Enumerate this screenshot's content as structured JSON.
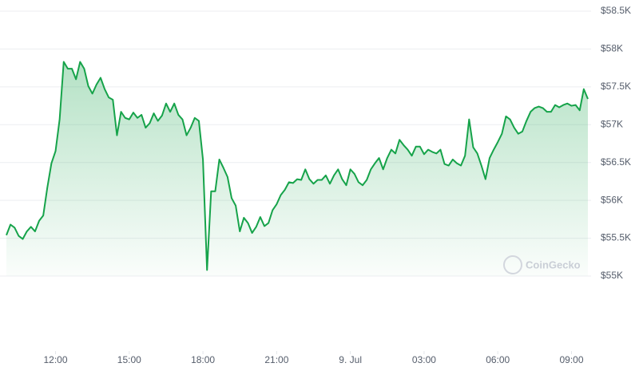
{
  "chart_data": {
    "type": "line",
    "watermark": "CoinGecko",
    "x": [
      600,
      610,
      620,
      630,
      640,
      650,
      660,
      670,
      680,
      690,
      700,
      710,
      720,
      730,
      740,
      750,
      760,
      770,
      780,
      790,
      800,
      810,
      820,
      830,
      840,
      850,
      860,
      870,
      880,
      890,
      900,
      910,
      920,
      930,
      940,
      950,
      960,
      970,
      980,
      990,
      1000,
      1010,
      1020,
      1030,
      1040,
      1050,
      1060,
      1070,
      1080,
      1090,
      1100,
      1110,
      1120,
      1130,
      1140,
      1150,
      1160,
      1170,
      1180,
      1190,
      1200,
      1210,
      1220,
      1230,
      1240,
      1250,
      1260,
      1270,
      1280,
      1290,
      1300,
      1310,
      1320,
      1330,
      1340,
      1350,
      1360,
      1370,
      1380,
      1390,
      1400,
      1410,
      1420,
      1430,
      1440,
      1450,
      1460,
      1470,
      1480,
      1490,
      1500,
      1510,
      1520,
      1530,
      1540,
      1550,
      1560,
      1570,
      1580,
      1590,
      1600,
      1610,
      1620,
      1630,
      1640,
      1650,
      1660,
      1670,
      1680,
      1690,
      1700,
      1710,
      1720,
      1730,
      1740,
      1750,
      1760,
      1770,
      1780,
      1790,
      1800,
      1810,
      1820,
      1830,
      1840,
      1850,
      1860,
      1870,
      1880,
      1890,
      1900,
      1910,
      1920,
      1930,
      1940,
      1950,
      1960,
      1970,
      1980,
      1990,
      2000,
      2010,
      2020
    ],
    "series": [
      {
        "color": "#16a34a",
        "values": [
          55540,
          55680,
          55640,
          55530,
          55490,
          55590,
          55650,
          55590,
          55730,
          55800,
          56170,
          56490,
          56650,
          57070,
          57830,
          57740,
          57740,
          57600,
          57830,
          57740,
          57510,
          57410,
          57530,
          57620,
          57470,
          57360,
          57330,
          56860,
          57170,
          57090,
          57070,
          57160,
          57090,
          57130,
          56960,
          57020,
          57150,
          57050,
          57120,
          57280,
          57170,
          57280,
          57130,
          57070,
          56860,
          56960,
          57090,
          57050,
          56540,
          55080,
          56120,
          56120,
          56540,
          56430,
          56310,
          56030,
          55930,
          55590,
          55770,
          55700,
          55570,
          55650,
          55780,
          55660,
          55700,
          55870,
          55950,
          56070,
          56140,
          56240,
          56230,
          56280,
          56270,
          56410,
          56280,
          56220,
          56270,
          56270,
          56330,
          56220,
          56330,
          56410,
          56280,
          56200,
          56410,
          56350,
          56240,
          56200,
          56270,
          56410,
          56490,
          56560,
          56410,
          56560,
          56670,
          56620,
          56800,
          56730,
          56670,
          56590,
          56710,
          56710,
          56610,
          56670,
          56640,
          56620,
          56670,
          56480,
          56460,
          56540,
          56490,
          56460,
          56590,
          57070,
          56700,
          56620,
          56460,
          56280,
          56560,
          56670,
          56770,
          56880,
          57110,
          57070,
          56960,
          56880,
          56910,
          57050,
          57170,
          57220,
          57240,
          57220,
          57170,
          57170,
          57260,
          57230,
          57260,
          57280,
          57250,
          57260,
          57190,
          57470,
          57340
        ]
      }
    ],
    "xlim": [
      600,
      2020
    ],
    "xticks": [
      {
        "value": 720,
        "label": "12:00"
      },
      {
        "value": 900,
        "label": "15:00"
      },
      {
        "value": 1080,
        "label": "18:00"
      },
      {
        "value": 1260,
        "label": "21:00"
      },
      {
        "value": 1440,
        "label": "9. Jul"
      },
      {
        "value": 1620,
        "label": "03:00"
      },
      {
        "value": 1800,
        "label": "06:00"
      },
      {
        "value": 1980,
        "label": "09:00"
      }
    ],
    "ylim": [
      55000,
      58500
    ],
    "yticks": [
      {
        "value": 55000,
        "label": "$55K"
      },
      {
        "value": 55500,
        "label": "$55.5K"
      },
      {
        "value": 56000,
        "label": "$56K"
      },
      {
        "value": 56500,
        "label": "$56.5K"
      },
      {
        "value": 57000,
        "label": "$57K"
      },
      {
        "value": 57500,
        "label": "$57.5K"
      },
      {
        "value": 58000,
        "label": "$58K"
      },
      {
        "value": 58500,
        "label": "$58.5K"
      }
    ],
    "grid": true
  }
}
